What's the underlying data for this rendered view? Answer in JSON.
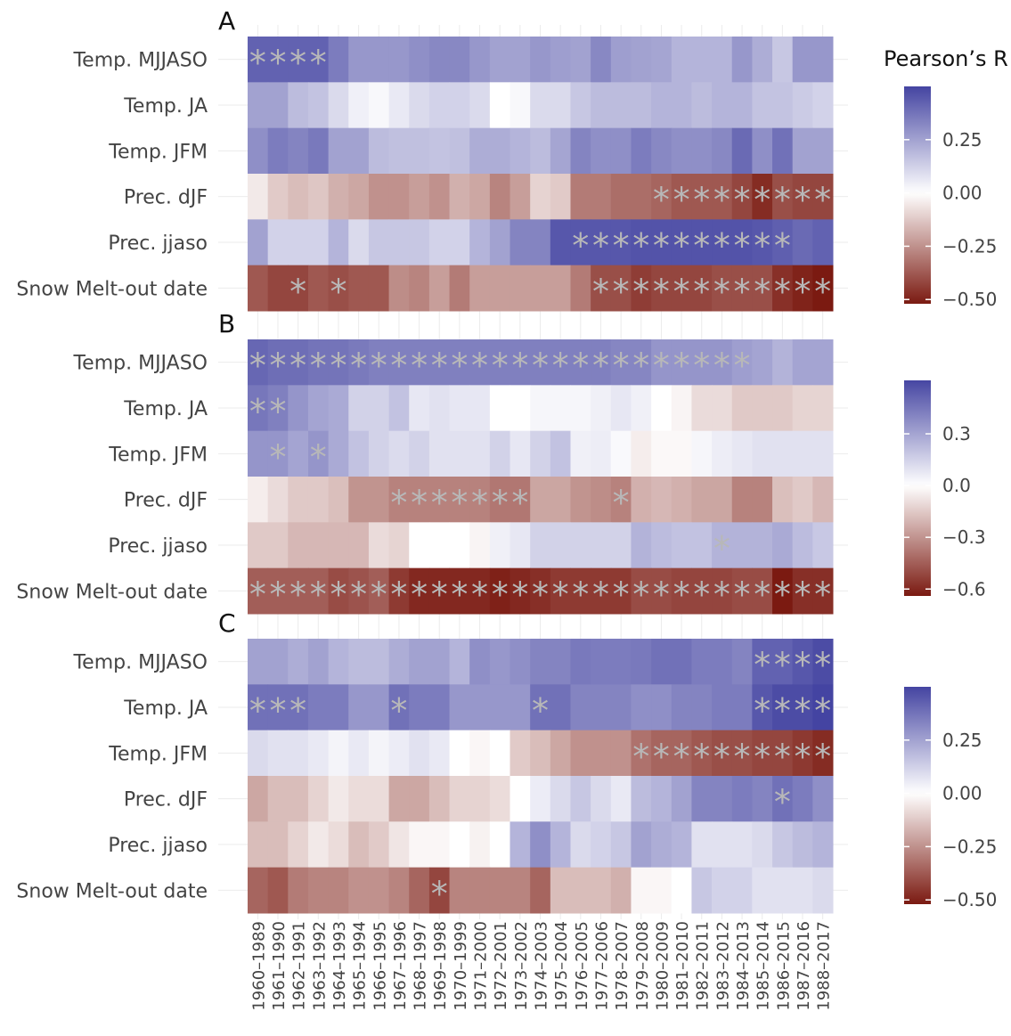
{
  "chart_data": {
    "type": "heatmap",
    "legend_title": "Pearson’s R",
    "marker": "*",
    "colors": {
      "low": "#7b1a11",
      "mid": "#ffffff",
      "high": "#3d3d9e",
      "marker": "#b8b8b8"
    },
    "rows": [
      "Temp. MJJASO",
      "Temp. JA",
      "Temp. JFM",
      "Prec. dJF",
      "Prec. jjaso",
      "Snow Melt-out date"
    ],
    "categories": [
      "1960–1989",
      "1961–1990",
      "1962–1991",
      "1963–1992",
      "1964–1993",
      "1965–1994",
      "1966–1995",
      "1967–1996",
      "1968–1997",
      "1969–1998",
      "1970–1999",
      "1971–2000",
      "1972–2001",
      "1973–2002",
      "1974–2003",
      "1975–2004",
      "1976–2005",
      "1977–2006",
      "1978–2007",
      "1979–2008",
      "1980–2009",
      "1981–2010",
      "1982–2011",
      "1983–2012",
      "1984–2013",
      "1985–2014",
      "1986–2015",
      "1987–2016",
      "1988–2017"
    ],
    "panels": [
      {
        "label": "A",
        "lim": [
          -0.52,
          0.5
        ],
        "ticks": [
          {
            "value": 0.25,
            "label": "0.25"
          },
          {
            "value": 0,
            "label": "0.00"
          },
          {
            "value": -0.25,
            "label": "−0.25"
          },
          {
            "value": -0.5,
            "label": "−0.50"
          }
        ],
        "values": [
          [
            0.42,
            0.42,
            0.42,
            0.42,
            0.35,
            0.28,
            0.28,
            0.28,
            0.3,
            0.32,
            0.32,
            0.28,
            0.25,
            0.25,
            0.28,
            0.26,
            0.25,
            0.32,
            0.26,
            0.25,
            0.24,
            0.2,
            0.2,
            0.2,
            0.28,
            0.22,
            0.15,
            0.28,
            0.28
          ],
          [
            0.25,
            0.25,
            0.18,
            0.16,
            0.1,
            0.04,
            0.02,
            0.06,
            0.1,
            0.12,
            0.12,
            0.1,
            0.0,
            0.02,
            0.1,
            0.1,
            0.15,
            0.18,
            0.18,
            0.18,
            0.2,
            0.2,
            0.18,
            0.2,
            0.2,
            0.16,
            0.16,
            0.14,
            0.12
          ],
          [
            0.3,
            0.35,
            0.33,
            0.36,
            0.25,
            0.25,
            0.18,
            0.17,
            0.17,
            0.16,
            0.17,
            0.22,
            0.22,
            0.2,
            0.18,
            0.24,
            0.33,
            0.3,
            0.3,
            0.35,
            0.32,
            0.3,
            0.3,
            0.32,
            0.4,
            0.3,
            0.38,
            0.25,
            0.25
          ],
          [
            -0.05,
            -0.12,
            -0.15,
            -0.13,
            -0.18,
            -0.2,
            -0.25,
            -0.25,
            -0.22,
            -0.25,
            -0.18,
            -0.2,
            -0.28,
            -0.22,
            -0.1,
            -0.12,
            -0.3,
            -0.3,
            -0.33,
            -0.33,
            -0.35,
            -0.38,
            -0.38,
            -0.38,
            -0.42,
            -0.48,
            -0.4,
            -0.42,
            -0.42
          ],
          [
            0.25,
            0.12,
            0.12,
            0.12,
            0.2,
            0.1,
            0.15,
            0.15,
            0.15,
            0.12,
            0.12,
            0.2,
            0.25,
            0.33,
            0.33,
            0.45,
            0.45,
            0.45,
            0.45,
            0.46,
            0.46,
            0.46,
            0.46,
            0.46,
            0.46,
            0.45,
            0.43,
            0.4,
            0.42
          ],
          [
            -0.38,
            -0.42,
            -0.42,
            -0.38,
            -0.4,
            -0.38,
            -0.38,
            -0.26,
            -0.28,
            -0.22,
            -0.3,
            -0.22,
            -0.22,
            -0.22,
            -0.22,
            -0.22,
            -0.3,
            -0.4,
            -0.4,
            -0.44,
            -0.42,
            -0.42,
            -0.42,
            -0.4,
            -0.4,
            -0.4,
            -0.47,
            -0.5,
            -0.52
          ]
        ],
        "significant": [
          [
            0,
            1,
            2,
            3
          ],
          [],
          [],
          [
            20,
            21,
            22,
            23,
            24,
            25,
            26,
            27,
            28
          ],
          [
            16,
            17,
            18,
            19,
            20,
            21,
            22,
            23,
            24,
            25,
            26
          ],
          [
            2,
            4,
            17,
            18,
            19,
            20,
            21,
            22,
            23,
            24,
            25,
            26,
            27,
            28
          ]
        ]
      },
      {
        "label": "B",
        "lim": [
          -0.64,
          0.61
        ],
        "ticks": [
          {
            "value": 0.3,
            "label": "0.3"
          },
          {
            "value": 0,
            "label": "0.0"
          },
          {
            "value": -0.3,
            "label": "−0.3"
          },
          {
            "value": -0.6,
            "label": "−0.6"
          }
        ],
        "values": [
          [
            0.5,
            0.48,
            0.48,
            0.46,
            0.46,
            0.44,
            0.42,
            0.42,
            0.42,
            0.42,
            0.42,
            0.42,
            0.42,
            0.42,
            0.42,
            0.42,
            0.42,
            0.42,
            0.4,
            0.4,
            0.35,
            0.35,
            0.35,
            0.35,
            0.32,
            0.3,
            0.25,
            0.3,
            0.3
          ],
          [
            0.45,
            0.42,
            0.35,
            0.3,
            0.28,
            0.15,
            0.15,
            0.2,
            0.08,
            0.1,
            0.08,
            0.08,
            0,
            0,
            0.03,
            0.03,
            0.03,
            0.05,
            0.08,
            0.05,
            0,
            -0.03,
            -0.1,
            -0.1,
            -0.15,
            -0.15,
            -0.15,
            -0.12,
            -0.12
          ],
          [
            0.35,
            0.35,
            0.3,
            0.35,
            0.28,
            0.2,
            0.15,
            0.12,
            0.15,
            0.1,
            0.1,
            0.1,
            0.15,
            0.08,
            0.15,
            0.2,
            0.05,
            0.06,
            0.02,
            -0.05,
            -0.02,
            -0.02,
            0.03,
            0.06,
            0.08,
            0.1,
            0.1,
            0.1,
            0.1
          ],
          [
            -0.05,
            -0.1,
            -0.15,
            -0.15,
            -0.18,
            -0.3,
            -0.3,
            -0.35,
            -0.35,
            -0.35,
            -0.35,
            -0.35,
            -0.38,
            -0.38,
            -0.25,
            -0.25,
            -0.3,
            -0.32,
            -0.35,
            -0.22,
            -0.2,
            -0.22,
            -0.25,
            -0.25,
            -0.35,
            -0.35,
            -0.18,
            -0.15,
            -0.2
          ],
          [
            -0.15,
            -0.15,
            -0.2,
            -0.2,
            -0.2,
            -0.2,
            -0.1,
            -0.12,
            0,
            0,
            0,
            -0.03,
            0.05,
            0.08,
            0.15,
            0.15,
            0.15,
            0.15,
            0.15,
            0.25,
            0.22,
            0.2,
            0.2,
            0.25,
            0.25,
            0.25,
            0.28,
            0.22,
            0.18
          ],
          [
            -0.45,
            -0.45,
            -0.45,
            -0.45,
            -0.5,
            -0.48,
            -0.45,
            -0.55,
            -0.6,
            -0.6,
            -0.6,
            -0.6,
            -0.62,
            -0.6,
            -0.58,
            -0.55,
            -0.55,
            -0.55,
            -0.55,
            -0.5,
            -0.5,
            -0.52,
            -0.52,
            -0.52,
            -0.5,
            -0.5,
            -0.64,
            -0.58,
            -0.58
          ]
        ],
        "significant": [
          [
            0,
            1,
            2,
            3,
            4,
            5,
            6,
            7,
            8,
            9,
            10,
            11,
            12,
            13,
            14,
            15,
            16,
            17,
            18,
            19,
            20,
            21,
            22,
            23,
            24
          ],
          [
            0,
            1
          ],
          [
            1,
            3
          ],
          [
            7,
            8,
            9,
            10,
            11,
            12,
            13,
            18
          ],
          [
            23
          ],
          [
            0,
            1,
            2,
            3,
            4,
            5,
            6,
            7,
            8,
            9,
            10,
            11,
            12,
            13,
            14,
            15,
            16,
            17,
            18,
            19,
            20,
            21,
            22,
            23,
            24,
            25,
            26,
            27,
            28
          ]
        ]
      },
      {
        "label": "C",
        "lim": [
          -0.52,
          0.5
        ],
        "ticks": [
          {
            "value": 0.25,
            "label": "0.25"
          },
          {
            "value": 0,
            "label": "0.00"
          },
          {
            "value": -0.25,
            "label": "−0.25"
          },
          {
            "value": -0.5,
            "label": "−0.50"
          }
        ],
        "values": [
          [
            0.25,
            0.25,
            0.22,
            0.25,
            0.2,
            0.18,
            0.18,
            0.22,
            0.25,
            0.25,
            0.2,
            0.3,
            0.28,
            0.3,
            0.33,
            0.33,
            0.36,
            0.35,
            0.35,
            0.36,
            0.38,
            0.38,
            0.35,
            0.35,
            0.33,
            0.42,
            0.42,
            0.45,
            0.48
          ],
          [
            0.38,
            0.38,
            0.38,
            0.35,
            0.35,
            0.28,
            0.28,
            0.38,
            0.35,
            0.35,
            0.28,
            0.28,
            0.28,
            0.28,
            0.38,
            0.38,
            0.33,
            0.33,
            0.33,
            0.3,
            0.3,
            0.33,
            0.33,
            0.35,
            0.35,
            0.45,
            0.48,
            0.48,
            0.5
          ],
          [
            0.1,
            0.08,
            0.08,
            0.06,
            0.03,
            0.06,
            0.03,
            0.05,
            0.08,
            0.06,
            0,
            -0.02,
            0,
            -0.12,
            -0.15,
            -0.2,
            -0.25,
            -0.25,
            -0.25,
            -0.32,
            -0.35,
            -0.35,
            -0.38,
            -0.4,
            -0.4,
            -0.42,
            -0.42,
            -0.45,
            -0.48
          ],
          [
            -0.2,
            -0.15,
            -0.15,
            -0.1,
            -0.05,
            -0.08,
            -0.08,
            -0.2,
            -0.2,
            -0.15,
            -0.1,
            -0.1,
            -0.08,
            0,
            0.05,
            0.1,
            0.15,
            0.1,
            0.06,
            0.18,
            0.2,
            0.25,
            0.33,
            0.33,
            0.35,
            0.33,
            0.38,
            0.35,
            0.3
          ],
          [
            -0.15,
            -0.15,
            -0.1,
            -0.05,
            -0.08,
            -0.15,
            -0.12,
            -0.06,
            -0.02,
            -0.02,
            0,
            -0.03,
            0,
            0.2,
            0.3,
            0.2,
            0.1,
            0.12,
            0.15,
            0.25,
            0.22,
            0.2,
            0.08,
            0.08,
            0.08,
            0.1,
            0.15,
            0.18,
            0.2
          ],
          [
            -0.35,
            -0.38,
            -0.3,
            -0.28,
            -0.28,
            -0.25,
            -0.25,
            -0.28,
            -0.35,
            -0.42,
            -0.28,
            -0.28,
            -0.28,
            -0.28,
            -0.35,
            -0.15,
            -0.15,
            -0.15,
            -0.18,
            -0.02,
            -0.02,
            0,
            0.15,
            0.12,
            0.12,
            0.08,
            0.08,
            0.08,
            0.1
          ]
        ],
        "significant": [
          [
            25,
            26,
            27,
            28
          ],
          [
            0,
            1,
            2,
            7,
            14,
            25,
            26,
            27,
            28
          ],
          [
            19,
            20,
            21,
            22,
            23,
            24,
            25,
            26,
            27,
            28
          ],
          [
            26
          ],
          [],
          [
            9
          ]
        ]
      }
    ]
  }
}
